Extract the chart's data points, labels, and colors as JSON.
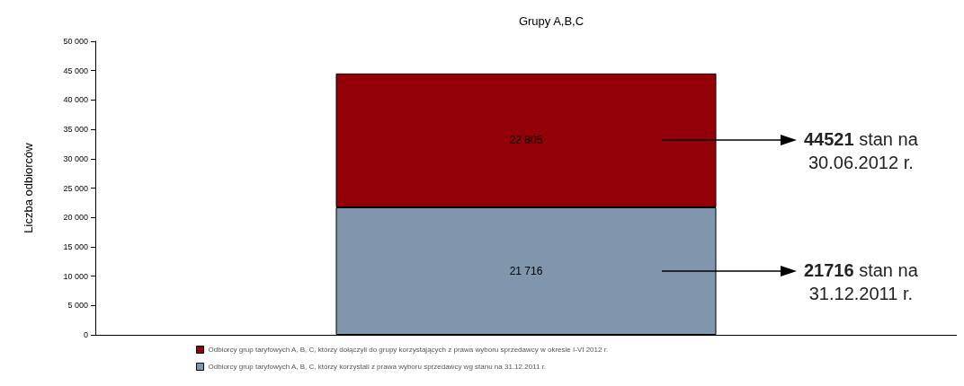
{
  "chart_data": {
    "type": "bar",
    "title": "Grupy A,B,C",
    "ylabel": "Liczba odbiorców",
    "categories": [
      null
    ],
    "stacked": true,
    "series": [
      {
        "name": "Odbiorcy grup taryfowych A, B, C, którzy korzystali z prawa wyboru sprzedawcy wg stanu na 31.12.2011 r.",
        "color": "#7f96ad",
        "values": [
          21716
        ],
        "value_labels": [
          "21 716"
        ]
      },
      {
        "name": "Odbiorcy grup taryfowych A, B, C, którzy dołączyli do grupy korzystających z prawa wyboru sprzedawcy w okresie I-VI 2012 r.",
        "color": "#940007",
        "values": [
          22805
        ],
        "value_labels": [
          "22 805"
        ]
      }
    ],
    "ylim": [
      0,
      50000
    ],
    "yticks": [
      0,
      {
        "value": 5000,
        "label": "5 000"
      },
      {
        "value": 10000,
        "label": "10 000"
      },
      {
        "value": 15000,
        "label": "15 000"
      },
      {
        "value": 20000,
        "label": "20 000"
      },
      {
        "value": 25000,
        "label": "25 000"
      },
      {
        "value": 30000,
        "label": "30 000"
      },
      {
        "value": 35000,
        "label": "35 000"
      },
      {
        "value": 40000,
        "label": "40 000"
      },
      {
        "value": 45000,
        "label": "45 000"
      },
      {
        "value": 50000,
        "label": "50 000"
      }
    ],
    "grid": false,
    "legend": "bottom",
    "annotations": [
      "44521 stan na\n30.06.2012 r.",
      "21716 stan na\n31.12.2011 r."
    ]
  }
}
